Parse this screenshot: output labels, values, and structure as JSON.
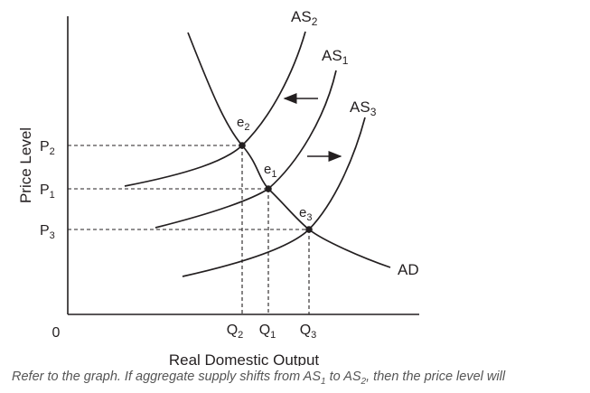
{
  "axes": {
    "y_title": "Price Level",
    "x_title": "Real Domestic Output",
    "origin_label": "0"
  },
  "price_ticks": [
    {
      "base": "P",
      "sub": "2"
    },
    {
      "base": "P",
      "sub": "1"
    },
    {
      "base": "P",
      "sub": "3"
    }
  ],
  "quantity_ticks": [
    {
      "base": "Q",
      "sub": "2"
    },
    {
      "base": "Q",
      "sub": "1"
    },
    {
      "base": "Q",
      "sub": "3"
    }
  ],
  "curves": [
    {
      "base": "AS",
      "sub": "2"
    },
    {
      "base": "AS",
      "sub": "1"
    },
    {
      "base": "AS",
      "sub": "3"
    },
    {
      "base": "AD",
      "sub": ""
    }
  ],
  "equilibria": [
    {
      "base": "e",
      "sub": "2"
    },
    {
      "base": "e",
      "sub": "1"
    },
    {
      "base": "e",
      "sub": "3"
    }
  ],
  "shift_arrows": [
    "left",
    "right"
  ],
  "caption": {
    "part1": "Refer to the graph. If aggregate supply shifts from AS",
    "sub1": "1",
    "part2": " to AS",
    "sub2": "2",
    "part3": ", then the price level will"
  },
  "colors": {
    "ink": "#231f20",
    "caption": "#555555",
    "background": "#ffffff"
  }
}
